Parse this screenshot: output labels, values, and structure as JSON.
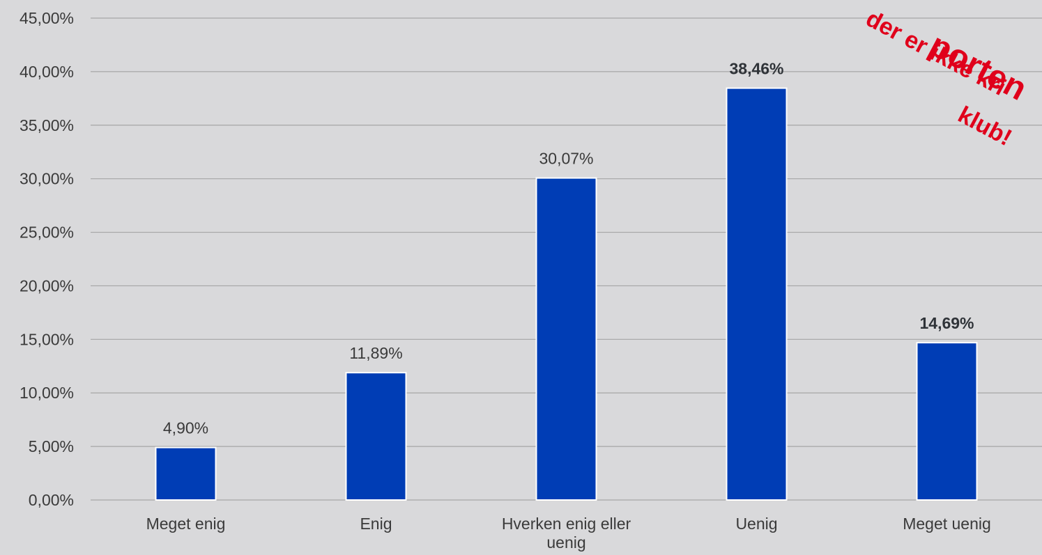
{
  "chart_data": {
    "type": "bar",
    "categories": [
      "Meget enig",
      "Enig",
      "Hverken enig eller uenig",
      "Uenig",
      "Meget uenig"
    ],
    "category_lines": [
      [
        "Meget enig"
      ],
      [
        "Enig"
      ],
      [
        "Hverken enig eller",
        "uenig"
      ],
      [
        "Uenig"
      ],
      [
        "Meget uenig"
      ]
    ],
    "values": [
      4.9,
      11.89,
      30.07,
      38.46,
      14.69
    ],
    "data_labels": [
      "4,90%",
      "11,89%",
      "30,07%",
      "38,46%",
      "14,69%"
    ],
    "bold_labels": [
      false,
      false,
      false,
      true,
      true
    ],
    "ylim": [
      0,
      45
    ],
    "yticks": [
      0,
      5,
      10,
      15,
      20,
      25,
      30,
      35,
      40,
      45
    ],
    "ytick_labels": [
      "0,00%",
      "5,00%",
      "10,00%",
      "15,00%",
      "20,00%",
      "25,00%",
      "30,00%",
      "35,00%",
      "40,00%",
      "45,00%"
    ],
    "grid": true,
    "bar_color": "#003db5",
    "title": "",
    "xlabel": "",
    "ylabel": ""
  },
  "stamp": {
    "lines": [
      "porten",
      "der er ikke kri",
      "klub!"
    ],
    "color": "#e0001b"
  }
}
